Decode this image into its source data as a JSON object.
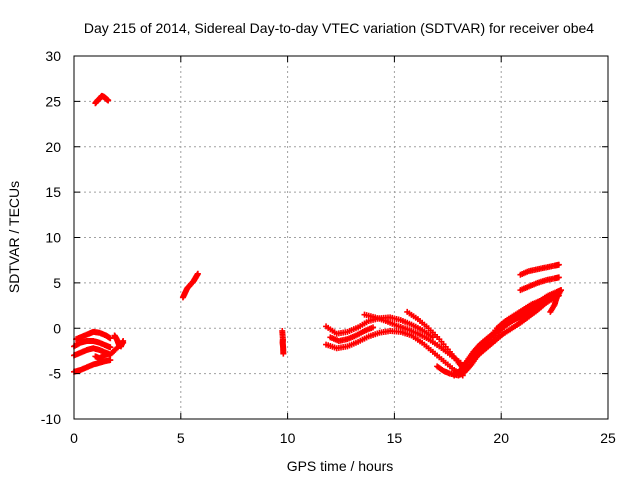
{
  "chart_data": {
    "type": "scatter",
    "title": "Day 215 of 2014, Sidereal Day-to-day VTEC variation (SDTVAR) for receiver obe4",
    "xlabel": "GPS time / hours",
    "ylabel": "SDTVAR / TECUs",
    "xlim": [
      0,
      25
    ],
    "ylim": [
      -10,
      30
    ],
    "xticks": [
      0,
      5,
      10,
      15,
      20,
      25
    ],
    "yticks": [
      -10,
      -5,
      0,
      5,
      10,
      15,
      20,
      25,
      30
    ],
    "grid": true,
    "marker": "plus",
    "color": "#ff0000",
    "series": [
      {
        "name": "c1",
        "x": [
          0.0,
          0.3,
          0.6,
          0.9,
          1.2,
          1.5,
          1.7
        ],
        "y": [
          -4.8,
          -4.6,
          -4.3,
          -4.0,
          -3.8,
          -3.6,
          -3.5
        ]
      },
      {
        "name": "c2",
        "x": [
          0.0,
          0.3,
          0.6,
          0.9,
          1.2,
          1.5,
          1.7,
          2.0,
          2.3
        ],
        "y": [
          -3.0,
          -2.7,
          -2.4,
          -2.2,
          -2.4,
          -2.7,
          -2.9,
          -2.2,
          -1.6
        ]
      },
      {
        "name": "c3",
        "x": [
          0.0,
          0.3,
          0.6,
          0.9,
          1.2,
          1.5,
          1.7
        ],
        "y": [
          -2.0,
          -1.6,
          -1.4,
          -1.4,
          -1.6,
          -1.9,
          -2.1
        ]
      },
      {
        "name": "c4",
        "x": [
          0.1,
          0.4,
          0.7,
          0.9,
          1.2,
          1.5,
          1.7
        ],
        "y": [
          -1.2,
          -0.9,
          -0.6,
          -0.4,
          -0.5,
          -0.8,
          -1.1
        ]
      },
      {
        "name": "c5",
        "x": [
          1.0,
          1.2,
          1.4,
          1.6
        ],
        "y": [
          -3.1,
          -3.3,
          -3.0,
          -2.8
        ]
      },
      {
        "name": "c6",
        "x": [
          1.9,
          2.0,
          2.1,
          2.2,
          2.3
        ],
        "y": [
          -0.8,
          -1.2,
          -1.8,
          -2.0,
          -1.4
        ]
      },
      {
        "name": "c7",
        "x": [
          1.0,
          1.1,
          1.2,
          1.3,
          1.4,
          1.5,
          1.6
        ],
        "y": [
          24.8,
          25.1,
          25.3,
          25.6,
          25.5,
          25.3,
          25.1
        ]
      },
      {
        "name": "c8",
        "x": [
          5.1,
          5.2,
          5.3,
          5.45,
          5.6,
          5.7,
          5.8
        ],
        "y": [
          3.4,
          3.9,
          4.4,
          4.8,
          5.2,
          5.6,
          6.0
        ]
      },
      {
        "name": "c9",
        "x": [
          9.75,
          9.78,
          9.77,
          9.79,
          9.8
        ],
        "y": [
          -0.3,
          -1.2,
          -1.6,
          -2.1,
          -2.8
        ]
      },
      {
        "name": "c10",
        "x": [
          11.8,
          12.3,
          12.8,
          13.3,
          13.8,
          14.3,
          14.8,
          15.3,
          15.8,
          16.3,
          16.8
        ],
        "y": [
          0.2,
          -0.6,
          -0.4,
          0.1,
          0.8,
          1.1,
          1.2,
          0.9,
          0.4,
          -0.2,
          -1.0
        ]
      },
      {
        "name": "c11",
        "x": [
          11.8,
          12.3,
          12.8,
          13.3,
          13.8,
          14.3,
          14.8,
          15.3,
          15.8,
          16.3,
          16.8,
          17.3,
          17.8,
          18.2
        ],
        "y": [
          -1.8,
          -2.2,
          -2.0,
          -1.5,
          -0.9,
          -0.5,
          -0.3,
          -0.4,
          -0.8,
          -1.6,
          -2.6,
          -3.6,
          -4.6,
          -5.2
        ]
      },
      {
        "name": "c12",
        "x": [
          13.6,
          14.1,
          14.6,
          15.1,
          15.6,
          16.1,
          16.6,
          17.1,
          17.6,
          18.1
        ],
        "y": [
          1.5,
          1.2,
          0.8,
          0.3,
          -0.1,
          -0.6,
          -1.2,
          -2.0,
          -2.9,
          -3.8
        ]
      },
      {
        "name": "c13",
        "x": [
          15.6,
          16.1,
          16.6,
          17.1,
          17.6,
          18.0,
          18.3
        ],
        "y": [
          1.8,
          1.0,
          0.0,
          -1.2,
          -2.6,
          -3.8,
          -4.6
        ]
      },
      {
        "name": "c14",
        "x": [
          17.0,
          17.3,
          17.6,
          18.0,
          18.3,
          18.6,
          18.9,
          19.3,
          19.7,
          20.1,
          20.5,
          20.9,
          21.3,
          21.7,
          22.1,
          22.5,
          22.7
        ],
        "y": [
          -4.2,
          -4.7,
          -5.0,
          -5.2,
          -4.8,
          -4.0,
          -3.0,
          -2.2,
          -1.4,
          -0.6,
          0.0,
          0.6,
          1.3,
          2.0,
          2.8,
          3.4,
          3.6
        ]
      },
      {
        "name": "c15",
        "x": [
          17.8,
          18.1,
          18.4,
          18.7,
          19.0,
          19.4,
          19.8,
          20.2,
          20.6,
          21.0,
          21.4,
          21.8,
          22.2,
          22.6,
          22.8
        ],
        "y": [
          -5.2,
          -4.6,
          -3.6,
          -2.6,
          -1.8,
          -1.0,
          -0.3,
          0.4,
          1.0,
          1.5,
          2.2,
          3.0,
          3.6,
          4.0,
          4.2
        ]
      },
      {
        "name": "c16",
        "x": [
          18.2,
          18.6,
          19.0,
          19.4,
          19.8,
          20.2,
          20.6,
          21.0,
          21.4,
          21.8,
          22.2,
          22.6
        ],
        "y": [
          -4.4,
          -3.4,
          -2.4,
          -1.6,
          -0.6,
          0.3,
          0.9,
          1.3,
          1.9,
          2.6,
          3.2,
          3.7
        ]
      },
      {
        "name": "c17",
        "x": [
          18.6,
          19.0,
          19.4,
          19.8,
          20.2,
          20.6,
          21.0,
          21.4,
          21.8,
          22.2
        ],
        "y": [
          -3.4,
          -2.2,
          -1.2,
          0.0,
          0.8,
          1.4,
          2.0,
          2.6,
          3.0,
          3.2
        ]
      },
      {
        "name": "c18",
        "x": [
          20.9,
          21.3,
          21.7,
          22.1,
          22.5,
          22.7
        ],
        "y": [
          5.9,
          6.3,
          6.5,
          6.7,
          6.9,
          7.0
        ]
      },
      {
        "name": "c19",
        "x": [
          20.9,
          21.3,
          21.7,
          22.1,
          22.5,
          22.7
        ],
        "y": [
          4.2,
          4.6,
          5.0,
          5.3,
          5.5,
          5.6
        ]
      },
      {
        "name": "c20",
        "x": [
          22.3,
          22.5,
          22.6,
          22.8
        ],
        "y": [
          1.8,
          2.6,
          3.4,
          4.2
        ]
      },
      {
        "name": "c21",
        "x": [
          20.1,
          20.4,
          20.7,
          21.0,
          21.3
        ],
        "y": [
          0.6,
          0.9,
          1.1,
          1.3,
          1.5
        ]
      },
      {
        "name": "c22",
        "x": [
          12.0,
          12.4,
          12.8,
          13.2,
          13.6,
          14.0
        ],
        "y": [
          -1.0,
          -1.4,
          -1.2,
          -0.8,
          -0.3,
          0.1
        ]
      }
    ]
  }
}
